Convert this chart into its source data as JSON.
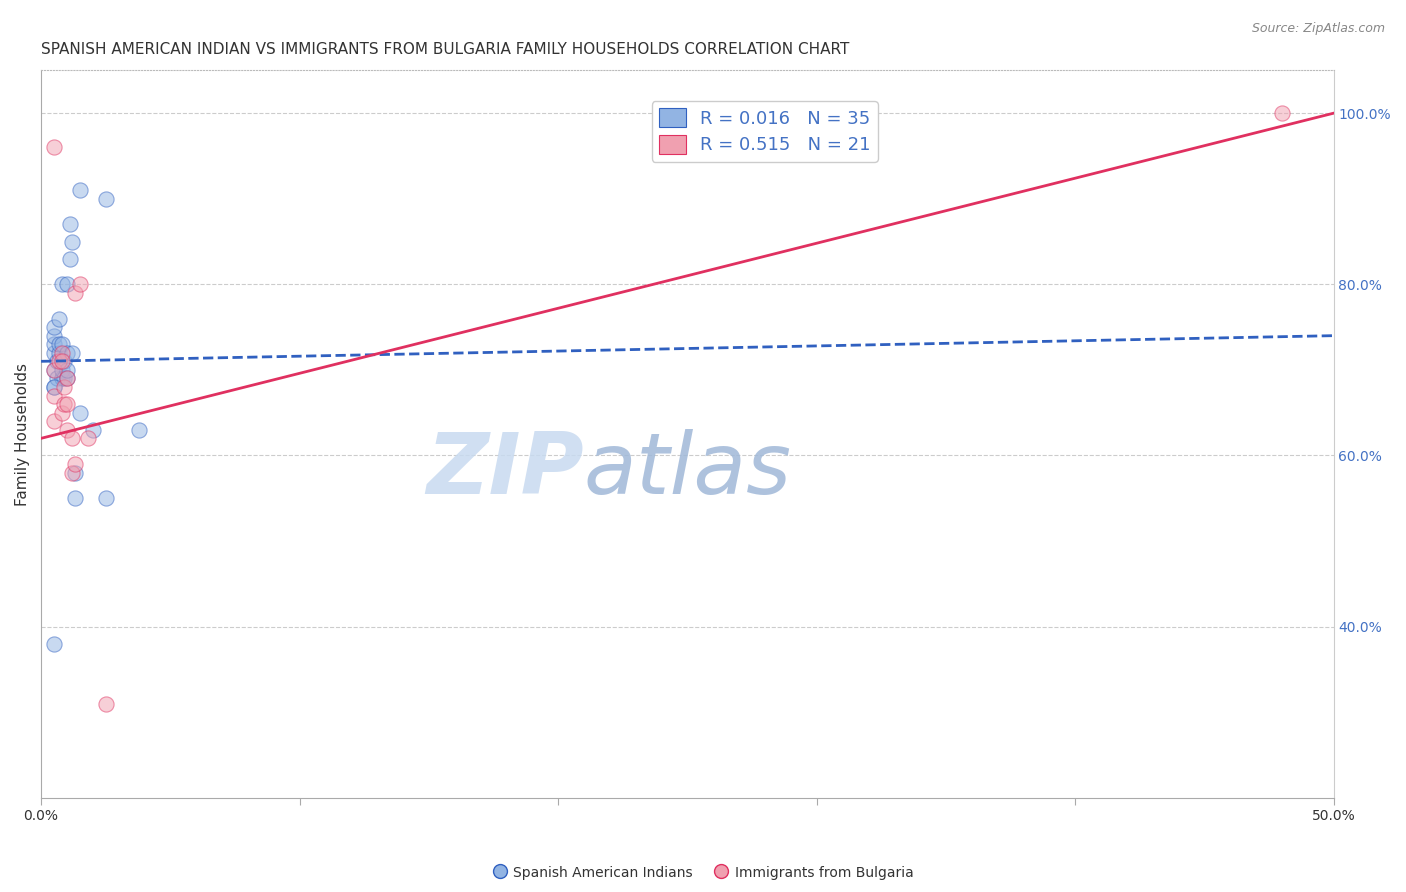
{
  "title": "SPANISH AMERICAN INDIAN VS IMMIGRANTS FROM BULGARIA FAMILY HOUSEHOLDS CORRELATION CHART",
  "source": "Source: ZipAtlas.com",
  "ylabel": "Family Households",
  "right_yticks": [
    "100.0%",
    "80.0%",
    "60.0%",
    "40.0%"
  ],
  "right_ytick_vals": [
    1.0,
    0.8,
    0.6,
    0.4
  ],
  "xmin": 0.0,
  "xmax": 0.5,
  "ymin": 0.2,
  "ymax": 1.05,
  "blue_R": 0.016,
  "blue_N": 35,
  "pink_R": 0.515,
  "pink_N": 21,
  "blue_color": "#92b4e3",
  "blue_line_color": "#3060c0",
  "pink_color": "#f0a0b0",
  "pink_line_color": "#e03060",
  "blue_scatter_x": [
    0.005,
    0.005,
    0.005,
    0.005,
    0.005,
    0.005,
    0.006,
    0.006,
    0.007,
    0.007,
    0.007,
    0.008,
    0.008,
    0.008,
    0.008,
    0.009,
    0.009,
    0.01,
    0.01,
    0.01,
    0.01,
    0.011,
    0.011,
    0.012,
    0.012,
    0.013,
    0.013,
    0.015,
    0.015,
    0.02,
    0.025,
    0.025,
    0.038,
    0.005,
    0.005
  ],
  "blue_scatter_y": [
    0.68,
    0.7,
    0.72,
    0.73,
    0.74,
    0.75,
    0.69,
    0.71,
    0.72,
    0.73,
    0.76,
    0.69,
    0.7,
    0.73,
    0.8,
    0.69,
    0.71,
    0.69,
    0.7,
    0.72,
    0.8,
    0.83,
    0.87,
    0.72,
    0.85,
    0.55,
    0.58,
    0.65,
    0.91,
    0.63,
    0.55,
    0.9,
    0.63,
    0.38,
    0.68
  ],
  "pink_scatter_x": [
    0.005,
    0.005,
    0.005,
    0.007,
    0.008,
    0.008,
    0.009,
    0.009,
    0.01,
    0.01,
    0.01,
    0.012,
    0.012,
    0.013,
    0.013,
    0.015,
    0.018,
    0.025,
    0.005,
    0.008,
    0.48
  ],
  "pink_scatter_y": [
    0.64,
    0.67,
    0.7,
    0.71,
    0.65,
    0.72,
    0.66,
    0.68,
    0.63,
    0.66,
    0.69,
    0.58,
    0.62,
    0.59,
    0.79,
    0.8,
    0.62,
    0.31,
    0.96,
    0.71,
    1.0
  ],
  "blue_trendline_x": [
    0.0,
    0.5
  ],
  "blue_trendline_y": [
    0.71,
    0.74
  ],
  "pink_trendline_x": [
    0.0,
    0.5
  ],
  "pink_trendline_y": [
    0.62,
    1.0
  ],
  "watermark_zip": "ZIP",
  "watermark_atlas": "atlas",
  "background_color": "#ffffff",
  "grid_color": "#cccccc",
  "title_fontsize": 11,
  "axis_label_fontsize": 11,
  "tick_fontsize": 10,
  "scatter_size": 120,
  "scatter_alpha": 0.5,
  "legend_label_blue": "R = 0.016   N = 35",
  "legend_label_pink": "R = 0.515   N = 21",
  "bottom_label_blue": "Spanish American Indians",
  "bottom_label_pink": "Immigrants from Bulgaria"
}
